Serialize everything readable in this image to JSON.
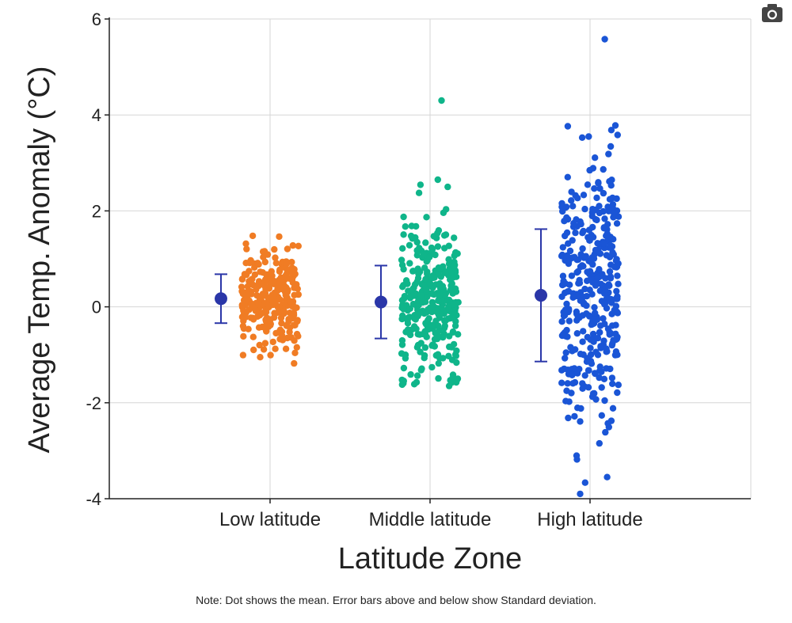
{
  "chart_data": {
    "type": "scatter",
    "title": "",
    "xlabel": "Latitude Zone",
    "ylabel": "Average Temp. Anomaly (°C)",
    "ylim": [
      -4,
      6
    ],
    "yticks": [
      6,
      4,
      2,
      0,
      -2,
      -4
    ],
    "yticks_text": [
      "6",
      "4",
      "2",
      "0",
      "-2",
      "-4"
    ],
    "categories": [
      "Low latitude",
      "Middle latitude",
      "High latitude"
    ],
    "grid": true,
    "series": [
      {
        "name": "Low latitude",
        "color": "#f07c24",
        "mean": 0.17,
        "sd": 0.51,
        "count": 280,
        "ymin": -1.2,
        "ymax": 1.5,
        "outliers": [
          -1.18,
          -1.05,
          1.48
        ]
      },
      {
        "name": "Middle latitude",
        "color": "#0fb58a",
        "mean": 0.1,
        "sd": 0.76,
        "count": 330,
        "ymin": -1.65,
        "ymax": 2.65,
        "outliers": [
          4.3,
          2.65,
          2.5,
          -1.65
        ]
      },
      {
        "name": "High latitude",
        "color": "#1a55d6",
        "mean": 0.24,
        "sd": 1.38,
        "count": 380,
        "ymin": -3.9,
        "ymax": 3.8,
        "outliers": [
          5.58,
          3.78,
          3.55,
          -3.55,
          -3.9
        ]
      }
    ],
    "mean_marker_color": "#2a36a8",
    "note": "Note: Dot shows the mean. Error bars above and below show Standard deviation."
  },
  "toolbar": {
    "camera_icon": "camera-icon"
  }
}
